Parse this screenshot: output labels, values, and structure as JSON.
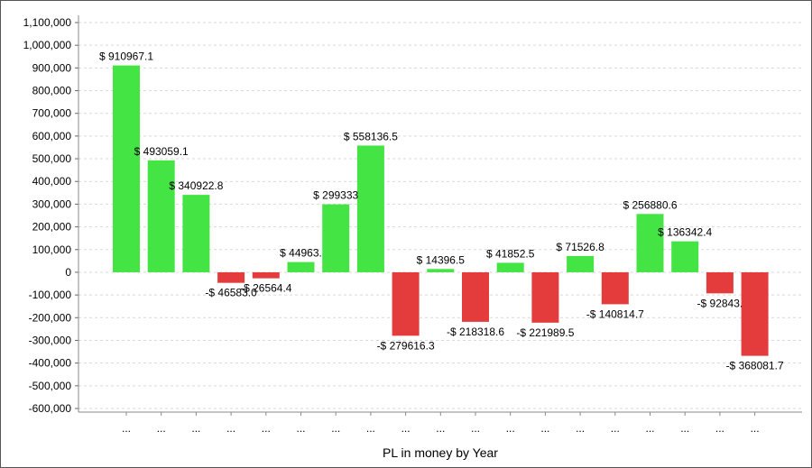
{
  "chart_data": {
    "type": "bar",
    "title": "",
    "xlabel": "PL in money by Year",
    "ylabel": "",
    "ylim": [
      -600000,
      1100000
    ],
    "ytick_step": 100000,
    "grid": true,
    "categories": [
      "...",
      "...",
      "...",
      "...",
      "...",
      "...",
      "...",
      "...",
      "...",
      "...",
      "...",
      "...",
      "...",
      "...",
      "...",
      "...",
      "...",
      "...",
      "..."
    ],
    "values": [
      910967.1,
      493059.1,
      340922.8,
      -46583.0,
      -26564.4,
      44963.0,
      299333.0,
      558136.5,
      -279616.3,
      14396.5,
      -218318.6,
      41852.5,
      -221989.5,
      71526.8,
      -140814.7,
      256880.6,
      136342.4,
      -92843.0,
      -368081.7
    ],
    "data_labels": [
      "$ 910967.1",
      "$ 493059.1",
      "$ 340922.8",
      "-$ 46583.0",
      "-$ 26564.4",
      "$ 44963.",
      "$ 299333",
      "$ 558136.5",
      "-$ 279616.3",
      "$ 14396.5",
      "-$ 218318.6",
      "$ 41852.5",
      "-$ 221989.5",
      "$ 71526.8",
      "-$ 140814.7",
      "$ 256880.6",
      "$ 136342.4",
      "-$ 92843.",
      "-$ 368081.7"
    ],
    "colors": {
      "positive": "#44e444",
      "negative": "#e43c3c",
      "grid": "#d9d9d9"
    }
  }
}
